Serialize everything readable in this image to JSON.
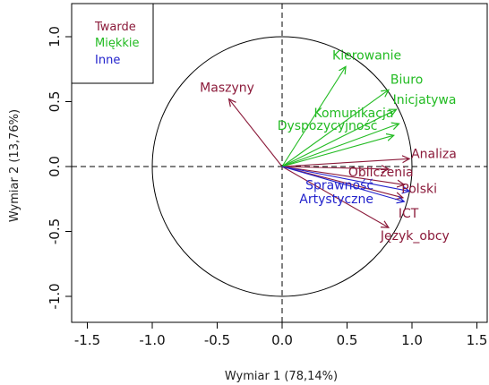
{
  "chart_data": {
    "type": "scatter",
    "subtype": "pca-correlation-circle",
    "xlabel": "Wymiar 1 (78,14%)",
    "ylabel": "Wymiar 2 (13,76%)",
    "xlim": [
      -1.6,
      1.6
    ],
    "ylim": [
      -1.2,
      1.2
    ],
    "x_ticks": [
      -1.5,
      -1.0,
      -0.5,
      0.0,
      0.5,
      1.0,
      1.5
    ],
    "x_tick_labels": [
      "-1.5",
      "-1.0",
      "-0.5",
      "0.0",
      "0.5",
      "1.0",
      "1.5"
    ],
    "y_ticks": [
      -1.0,
      -0.5,
      0.0,
      0.5,
      1.0
    ],
    "y_tick_labels": [
      "-1.0",
      "-0.5",
      "0.0",
      "0.5",
      "1.0"
    ],
    "grid": false,
    "unit_circle": true,
    "reference_lines": [
      "x=0 dashed",
      "y=0 dashed"
    ],
    "legend": {
      "position": "top-left",
      "entries": [
        {
          "label": "Twarde",
          "color": "#8b1a3a"
        },
        {
          "label": "Miękkie",
          "color": "#22bb22"
        },
        {
          "label": "Inne",
          "color": "#2222cc"
        }
      ]
    },
    "series": [
      {
        "name": "Twarde",
        "color": "#8b1a3a",
        "points": [
          {
            "label": "Maszyny",
            "x": -0.41,
            "y": 0.52
          },
          {
            "label": "Analiza",
            "x": 0.98,
            "y": 0.06
          },
          {
            "label": "Obliczenia",
            "x": 0.82,
            "y": -0.02
          },
          {
            "label": "Polski",
            "x": 0.94,
            "y": -0.14
          },
          {
            "label": "ICT",
            "x": 0.93,
            "y": -0.24
          },
          {
            "label": "Język_obcy",
            "x": 0.82,
            "y": -0.47
          }
        ]
      },
      {
        "name": "Miękkie",
        "color": "#22bb22",
        "points": [
          {
            "label": "Kierowanie",
            "x": 0.49,
            "y": 0.77
          },
          {
            "label": "Biuro",
            "x": 0.82,
            "y": 0.59
          },
          {
            "label": "Inicjatywa",
            "x": 0.88,
            "y": 0.44
          },
          {
            "label": "Komunikacja",
            "x": 0.9,
            "y": 0.33
          },
          {
            "label": "Dyspozycyjność",
            "x": 0.86,
            "y": 0.24
          }
        ]
      },
      {
        "name": "Inne",
        "color": "#2222cc",
        "points": [
          {
            "label": "Sprawność",
            "x": 0.98,
            "y": -0.19
          },
          {
            "label": "Artystyczne",
            "x": 0.94,
            "y": -0.27
          }
        ]
      }
    ]
  }
}
